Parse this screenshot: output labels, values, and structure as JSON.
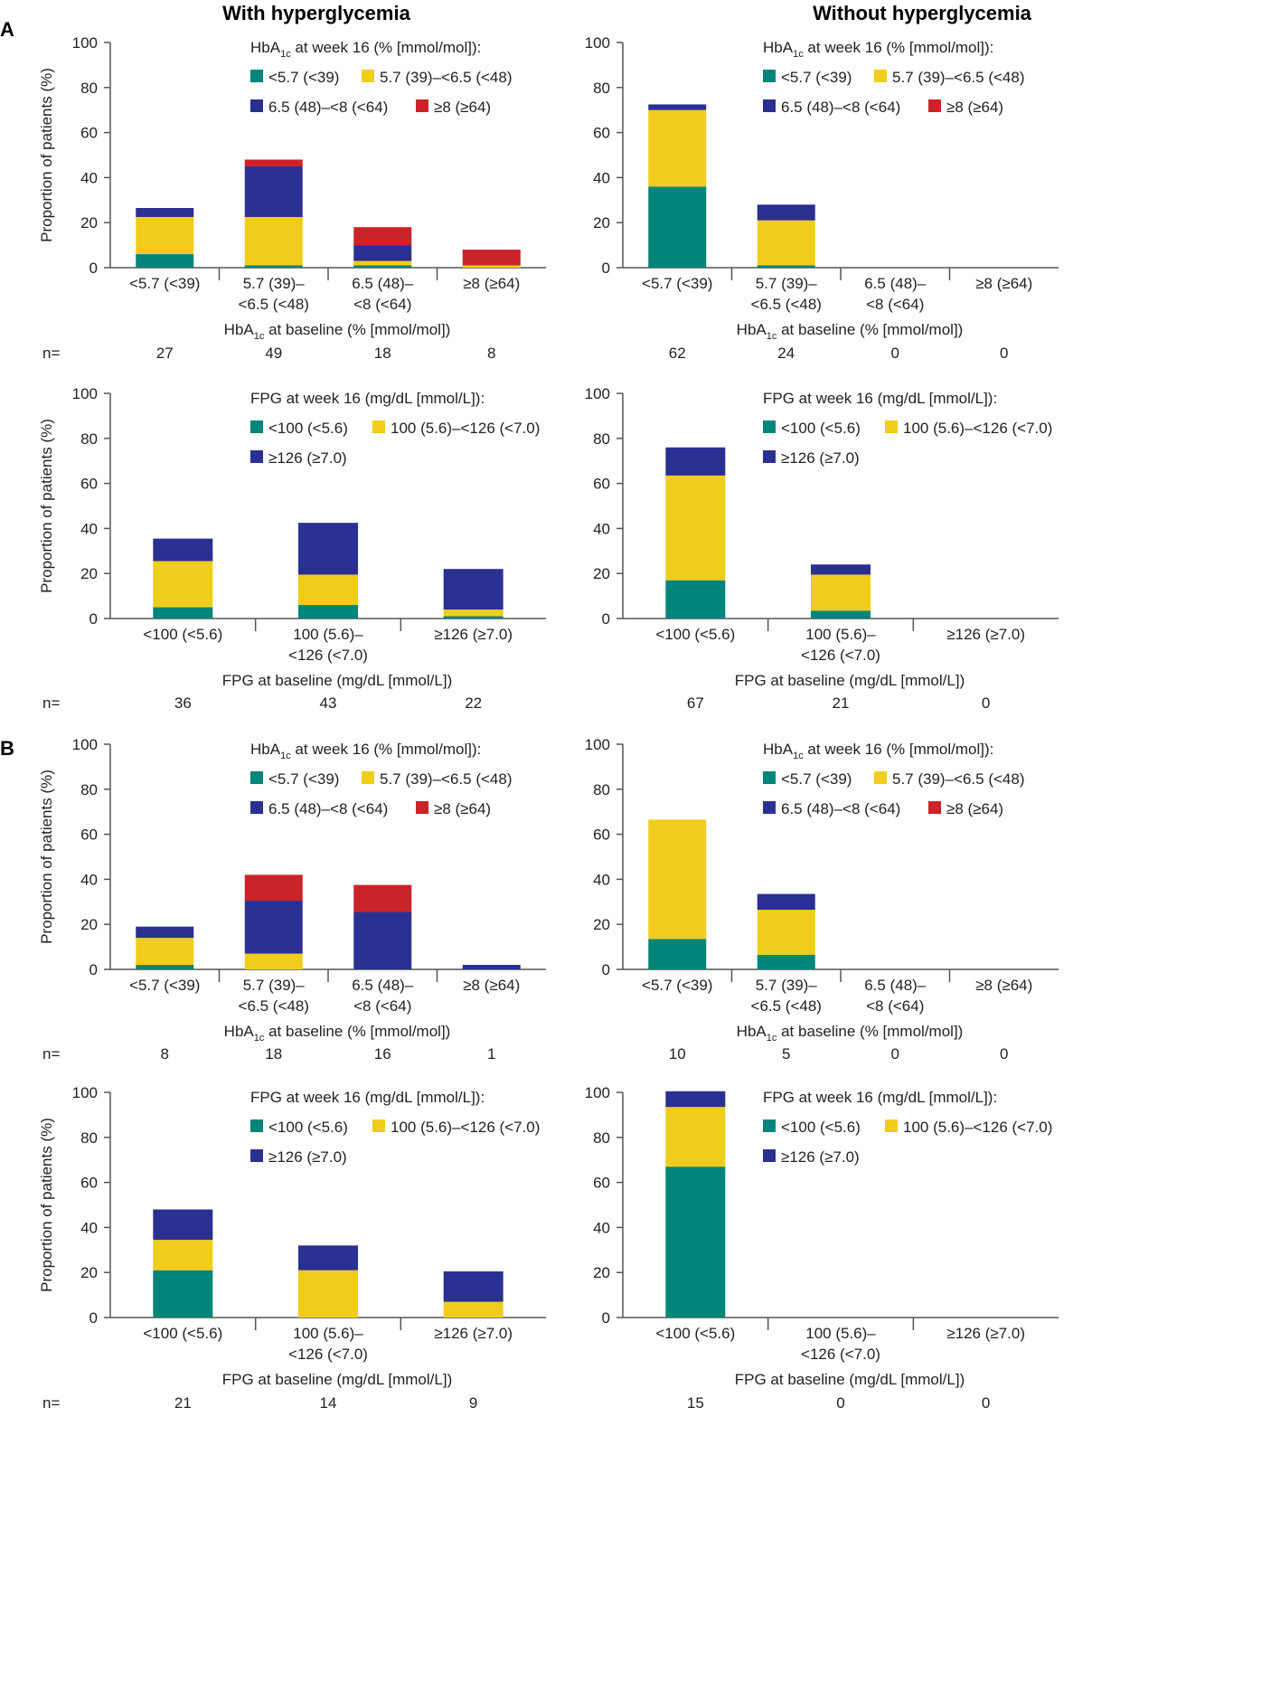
{
  "figure": {
    "col_left_title": "With hyperglycemia",
    "col_right_title": "Without hyperglycemia",
    "panel_a_letter": "A",
    "panel_b_letter": "B",
    "n_label": "n="
  },
  "colors": {
    "teal": "#00857a",
    "yellow": "#f0cd1c",
    "blue": "#2a3092",
    "red": "#cc2229",
    "axis": "#555555"
  },
  "legends": {
    "hba1c": {
      "title_pre": "HbA",
      "title_sub": "1c",
      "title_post": " at week 16 (% [mmol/mol]):",
      "items": [
        "<5.7 (<39)",
        "5.7 (39)–<6.5 (<48)",
        "6.5 (48)–<8 (<64)",
        "≥8 (≥64)"
      ]
    },
    "fpg": {
      "title": "FPG at week 16 (mg/dL [mmol/L]):",
      "items": [
        "<100 (<5.6)",
        "100 (5.6)–<126 (<7.0)",
        "≥126 (≥7.0)"
      ]
    }
  },
  "axes": {
    "ylabel": "Proportion of patients (%)",
    "yticks": [
      "0",
      "20",
      "40",
      "60",
      "80",
      "100"
    ],
    "hba1c_xlabel_pre": "HbA",
    "hba1c_xlabel_sub": "1c",
    "hba1c_xlabel_post": " at baseline (% [mmol/mol])",
    "fpg_xlabel": "FPG at baseline (mg/dL [mmol/L])",
    "hba1c_categories": [
      [
        "<5.7 (<39)"
      ],
      [
        "5.7 (39)–",
        "<6.5 (<48)"
      ],
      [
        "6.5 (48)–",
        "<8 (<64)"
      ],
      [
        "≥8 (≥64)"
      ]
    ],
    "fpg_categories": [
      [
        "<100 (<5.6)"
      ],
      [
        "100 (5.6)–",
        "<126 (<7.0)"
      ],
      [
        "≥126 (≥7.0)"
      ]
    ]
  },
  "chart_data": [
    {
      "id": "A-hba1c-with",
      "type": "bar",
      "stacked": true,
      "ylim": [
        0,
        100
      ],
      "categories": [
        "<5.7 (<39)",
        "5.7 (39)–<6.5 (<48)",
        "6.5 (48)–<8 (<64)",
        "≥8 (≥64)"
      ],
      "series": [
        {
          "name": "<5.7 (<39)",
          "values": [
            6,
            1,
            1,
            0
          ]
        },
        {
          "name": "5.7 (39)–<6.5 (<48)",
          "values": [
            16.5,
            21.5,
            2,
            1
          ]
        },
        {
          "name": "6.5 (48)–<8 (<64)",
          "values": [
            4,
            22.5,
            7,
            0
          ]
        },
        {
          "name": "≥8 (≥64)",
          "values": [
            0,
            3,
            8,
            7
          ]
        }
      ],
      "n": [
        "27",
        "49",
        "18",
        "8"
      ]
    },
    {
      "id": "A-hba1c-without",
      "type": "bar",
      "stacked": true,
      "ylim": [
        0,
        100
      ],
      "categories": [
        "<5.7 (<39)",
        "5.7 (39)–<6.5 (<48)",
        "6.5 (48)–<8 (<64)",
        "≥8 (≥64)"
      ],
      "series": [
        {
          "name": "<5.7 (<39)",
          "values": [
            36,
            1,
            0,
            0
          ]
        },
        {
          "name": "5.7 (39)–<6.5 (<48)",
          "values": [
            34,
            20,
            0,
            0
          ]
        },
        {
          "name": "6.5 (48)–<8 (<64)",
          "values": [
            2.5,
            7,
            0,
            0
          ]
        },
        {
          "name": "≥8 (≥64)",
          "values": [
            0,
            0,
            0,
            0
          ]
        }
      ],
      "n": [
        "62",
        "24",
        "0",
        "0"
      ]
    },
    {
      "id": "A-fpg-with",
      "type": "bar",
      "stacked": true,
      "ylim": [
        0,
        100
      ],
      "categories": [
        "<100 (<5.6)",
        "100 (5.6)–<126 (<7.0)",
        "≥126 (≥7.0)"
      ],
      "series": [
        {
          "name": "<100 (<5.6)",
          "values": [
            5,
            6,
            1
          ]
        },
        {
          "name": "100 (5.6)–<126 (<7.0)",
          "values": [
            20.5,
            13.5,
            3
          ]
        },
        {
          "name": "≥126 (≥7.0)",
          "values": [
            10,
            23,
            18
          ]
        }
      ],
      "n": [
        "36",
        "43",
        "22"
      ]
    },
    {
      "id": "A-fpg-without",
      "type": "bar",
      "stacked": true,
      "ylim": [
        0,
        100
      ],
      "categories": [
        "<100 (<5.6)",
        "100 (5.6)–<126 (<7.0)",
        "≥126 (≥7.0)"
      ],
      "series": [
        {
          "name": "<100 (<5.6)",
          "values": [
            17,
            3.5,
            0
          ]
        },
        {
          "name": "100 (5.6)–<126 (<7.0)",
          "values": [
            46.5,
            16,
            0
          ]
        },
        {
          "name": "≥126 (≥7.0)",
          "values": [
            12.5,
            4.5,
            0
          ]
        }
      ],
      "n": [
        "67",
        "21",
        "0"
      ]
    },
    {
      "id": "B-hba1c-with",
      "type": "bar",
      "stacked": true,
      "ylim": [
        0,
        100
      ],
      "categories": [
        "<5.7 (<39)",
        "5.7 (39)–<6.5 (<48)",
        "6.5 (48)–<8 (<64)",
        "≥8 (≥64)"
      ],
      "series": [
        {
          "name": "<5.7 (<39)",
          "values": [
            2,
            0,
            0,
            0
          ]
        },
        {
          "name": "5.7 (39)–<6.5 (<48)",
          "values": [
            12,
            7,
            0,
            0
          ]
        },
        {
          "name": "6.5 (48)–<8 (<64)",
          "values": [
            5,
            23.5,
            25.5,
            2
          ]
        },
        {
          "name": "≥8 (≥64)",
          "values": [
            0,
            11.5,
            12,
            0
          ]
        }
      ],
      "n": [
        "8",
        "18",
        "16",
        "1"
      ]
    },
    {
      "id": "B-hba1c-without",
      "type": "bar",
      "stacked": true,
      "ylim": [
        0,
        100
      ],
      "categories": [
        "<5.7 (<39)",
        "5.7 (39)–<6.5 (<48)",
        "6.5 (48)–<8 (<64)",
        "≥8 (≥64)"
      ],
      "series": [
        {
          "name": "<5.7 (<39)",
          "values": [
            13.5,
            6.5,
            0,
            0
          ]
        },
        {
          "name": "5.7 (39)–<6.5 (<48)",
          "values": [
            53,
            20,
            0,
            0
          ]
        },
        {
          "name": "6.5 (48)–<8 (<64)",
          "values": [
            0,
            7,
            0,
            0
          ]
        },
        {
          "name": "≥8 (≥64)",
          "values": [
            0,
            0,
            0,
            0
          ]
        }
      ],
      "n": [
        "10",
        "5",
        "0",
        "0"
      ]
    },
    {
      "id": "B-fpg-with",
      "type": "bar",
      "stacked": true,
      "ylim": [
        0,
        100
      ],
      "categories": [
        "<100 (<5.6)",
        "100 (5.6)–<126 (<7.0)",
        "≥126 (≥7.0)"
      ],
      "series": [
        {
          "name": "<100 (<5.6)",
          "values": [
            21,
            0,
            0
          ]
        },
        {
          "name": "100 (5.6)–<126 (<7.0)",
          "values": [
            13.5,
            21,
            7
          ]
        },
        {
          "name": "≥126 (≥7.0)",
          "values": [
            13.5,
            11,
            13.5
          ]
        }
      ],
      "n": [
        "21",
        "14",
        "9"
      ]
    },
    {
      "id": "B-fpg-without",
      "type": "bar",
      "stacked": true,
      "ylim": [
        0,
        100
      ],
      "categories": [
        "<100 (<5.6)",
        "100 (5.6)–<126 (<7.0)",
        "≥126 (≥7.0)"
      ],
      "series": [
        {
          "name": "<100 (<5.6)",
          "values": [
            67,
            0,
            0
          ]
        },
        {
          "name": "100 (5.6)–<126 (<7.0)",
          "values": [
            26.5,
            0,
            0
          ]
        },
        {
          "name": "≥126 (≥7.0)",
          "values": [
            7,
            0,
            0
          ]
        }
      ],
      "n": [
        "15",
        "0",
        "0"
      ]
    }
  ]
}
